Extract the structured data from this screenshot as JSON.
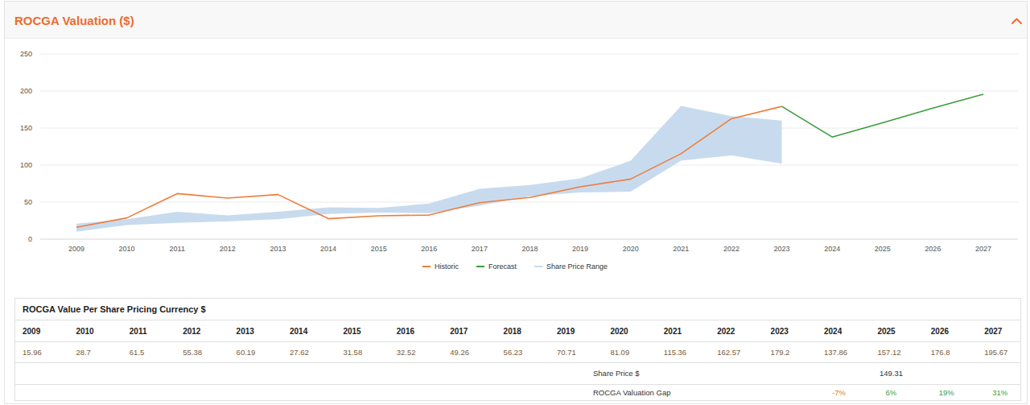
{
  "chart_data": {
    "type": "line",
    "title": "ROCGA Valuation ($)",
    "categories": [
      "2009",
      "2010",
      "2011",
      "2012",
      "2013",
      "2014",
      "2015",
      "2016",
      "2017",
      "2018",
      "2019",
      "2020",
      "2021",
      "2022",
      "2023",
      "2024",
      "2025",
      "2026",
      "2027"
    ],
    "series": [
      {
        "name": "Historic",
        "type": "line",
        "color": "#ef7d3c",
        "values": [
          15.96,
          28.7,
          61.5,
          55.38,
          60.19,
          27.62,
          31.58,
          32.52,
          49.26,
          56.23,
          70.71,
          81.09,
          115.36,
          162.57,
          179.2,
          null,
          null,
          null,
          null
        ]
      },
      {
        "name": "Forecast",
        "type": "line",
        "color": "#3a9d3a",
        "values": [
          null,
          null,
          null,
          null,
          null,
          null,
          null,
          null,
          null,
          null,
          null,
          null,
          null,
          null,
          179.2,
          137.86,
          157.12,
          176.8,
          195.67
        ]
      },
      {
        "name": "Share Price Range",
        "type": "range",
        "color": "#c8dbee",
        "values": [
          21,
          27,
          37,
          32,
          37,
          43,
          42,
          48,
          68,
          73,
          82,
          106,
          180,
          166,
          160,
          null,
          null,
          null,
          null
        ],
        "low": [
          10,
          19,
          22,
          24,
          27,
          34,
          36,
          35,
          45,
          58,
          63,
          64,
          106,
          113,
          102,
          null,
          null,
          null,
          null
        ]
      }
    ],
    "ylim": [
      0,
      250
    ],
    "yticks": [
      0,
      50,
      100,
      150,
      200,
      250
    ],
    "grid": true,
    "legend": "bottom"
  },
  "table": {
    "title": "ROCGA Value Per Share Pricing Currency $",
    "header": [
      "2009",
      "2010",
      "2011",
      "2012",
      "2013",
      "2014",
      "2015",
      "2016",
      "2017",
      "2018",
      "2019",
      "2020",
      "2021",
      "2022",
      "2023",
      "2024",
      "2025",
      "2026",
      "2027"
    ],
    "values": [
      15.96,
      28.7,
      61.5,
      55.38,
      60.19,
      27.62,
      31.58,
      32.52,
      49.26,
      56.23,
      70.71,
      81.09,
      115.36,
      162.57,
      179.2,
      137.86,
      157.12,
      176.8,
      195.67
    ],
    "share_price": {
      "label": "Share Price $",
      "value": 149.31
    },
    "valuation_gap": {
      "label": "ROCGA Valuation Gap",
      "values": [
        {
          "value": -7,
          "label": "-7%"
        },
        {
          "value": 6,
          "label": "6%"
        },
        {
          "value": 19,
          "label": "19%"
        },
        {
          "value": 31,
          "label": "31%"
        }
      ]
    }
  }
}
